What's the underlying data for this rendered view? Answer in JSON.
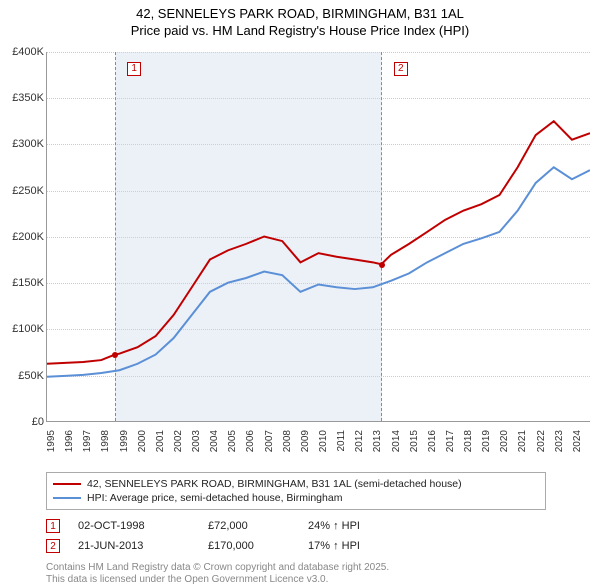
{
  "title": {
    "line1": "42, SENNELEYS PARK ROAD, BIRMINGHAM, B31 1AL",
    "line2": "Price paid vs. HM Land Registry's House Price Index (HPI)"
  },
  "chart": {
    "type": "line",
    "background_color": "#ffffff",
    "grid_color": "#cccccc",
    "axis_color": "#999999",
    "x_years": [
      1995,
      1996,
      1997,
      1998,
      1999,
      2000,
      2001,
      2002,
      2003,
      2004,
      2005,
      2006,
      2007,
      2008,
      2009,
      2010,
      2011,
      2012,
      2013,
      2014,
      2015,
      2016,
      2017,
      2018,
      2019,
      2020,
      2021,
      2022,
      2023,
      2024
    ],
    "x_start": 1995,
    "x_end": 2025,
    "ylim": [
      0,
      400000
    ],
    "ytick_step": 50000,
    "yticks": [
      "£0",
      "£50K",
      "£100K",
      "£150K",
      "£200K",
      "£250K",
      "£300K",
      "£350K",
      "£400K"
    ],
    "tick_fontsize": 11,
    "shade": {
      "start_year": 1998.75,
      "end_year": 2013.47,
      "color": "rgba(200,215,235,0.35)",
      "dash_color": "#e06666"
    },
    "markers": [
      {
        "label": "1",
        "year": 1999.2
      },
      {
        "label": "2",
        "year": 2013.9
      }
    ],
    "series": [
      {
        "name": "42, SENNELEYS PARK ROAD, BIRMINGHAM, B31 1AL (semi-detached house)",
        "color": "#c00000",
        "line_width": 2,
        "points": [
          [
            1995,
            62000
          ],
          [
            1996,
            63000
          ],
          [
            1997,
            64000
          ],
          [
            1998,
            66000
          ],
          [
            1998.75,
            72000
          ],
          [
            1999,
            73000
          ],
          [
            2000,
            80000
          ],
          [
            2001,
            92000
          ],
          [
            2002,
            115000
          ],
          [
            2003,
            145000
          ],
          [
            2004,
            175000
          ],
          [
            2005,
            185000
          ],
          [
            2006,
            192000
          ],
          [
            2007,
            200000
          ],
          [
            2008,
            195000
          ],
          [
            2009,
            172000
          ],
          [
            2010,
            182000
          ],
          [
            2011,
            178000
          ],
          [
            2012,
            175000
          ],
          [
            2013,
            172000
          ],
          [
            2013.47,
            170000
          ],
          [
            2014,
            180000
          ],
          [
            2015,
            192000
          ],
          [
            2016,
            205000
          ],
          [
            2017,
            218000
          ],
          [
            2018,
            228000
          ],
          [
            2019,
            235000
          ],
          [
            2020,
            245000
          ],
          [
            2021,
            275000
          ],
          [
            2022,
            310000
          ],
          [
            2023,
            325000
          ],
          [
            2024,
            305000
          ],
          [
            2025,
            312000
          ]
        ],
        "sale_points": [
          {
            "year": 1998.75,
            "price": 72000
          },
          {
            "year": 2013.47,
            "price": 170000
          }
        ]
      },
      {
        "name": "HPI: Average price, semi-detached house, Birmingham",
        "color": "#5b8fd6",
        "line_width": 2,
        "points": [
          [
            1995,
            48000
          ],
          [
            1996,
            49000
          ],
          [
            1997,
            50000
          ],
          [
            1998,
            52000
          ],
          [
            1999,
            55000
          ],
          [
            2000,
            62000
          ],
          [
            2001,
            72000
          ],
          [
            2002,
            90000
          ],
          [
            2003,
            115000
          ],
          [
            2004,
            140000
          ],
          [
            2005,
            150000
          ],
          [
            2006,
            155000
          ],
          [
            2007,
            162000
          ],
          [
            2008,
            158000
          ],
          [
            2009,
            140000
          ],
          [
            2010,
            148000
          ],
          [
            2011,
            145000
          ],
          [
            2012,
            143000
          ],
          [
            2013,
            145000
          ],
          [
            2014,
            152000
          ],
          [
            2015,
            160000
          ],
          [
            2016,
            172000
          ],
          [
            2017,
            182000
          ],
          [
            2018,
            192000
          ],
          [
            2019,
            198000
          ],
          [
            2020,
            205000
          ],
          [
            2021,
            228000
          ],
          [
            2022,
            258000
          ],
          [
            2023,
            275000
          ],
          [
            2024,
            262000
          ],
          [
            2025,
            272000
          ]
        ]
      }
    ]
  },
  "legend": {
    "border_color": "#aaaaaa",
    "items": [
      {
        "color": "#c00000",
        "label": "42, SENNELEYS PARK ROAD, BIRMINGHAM, B31 1AL (semi-detached house)"
      },
      {
        "color": "#5b8fd6",
        "label": "HPI: Average price, semi-detached house, Birmingham"
      }
    ]
  },
  "sales": [
    {
      "badge": "1",
      "date": "02-OCT-1998",
      "price": "£72,000",
      "pct": "24% ↑ HPI"
    },
    {
      "badge": "2",
      "date": "21-JUN-2013",
      "price": "£170,000",
      "pct": "17% ↑ HPI"
    }
  ],
  "footer": {
    "line1": "Contains HM Land Registry data © Crown copyright and database right 2025.",
    "line2": "This data is licensed under the Open Government Licence v3.0."
  }
}
